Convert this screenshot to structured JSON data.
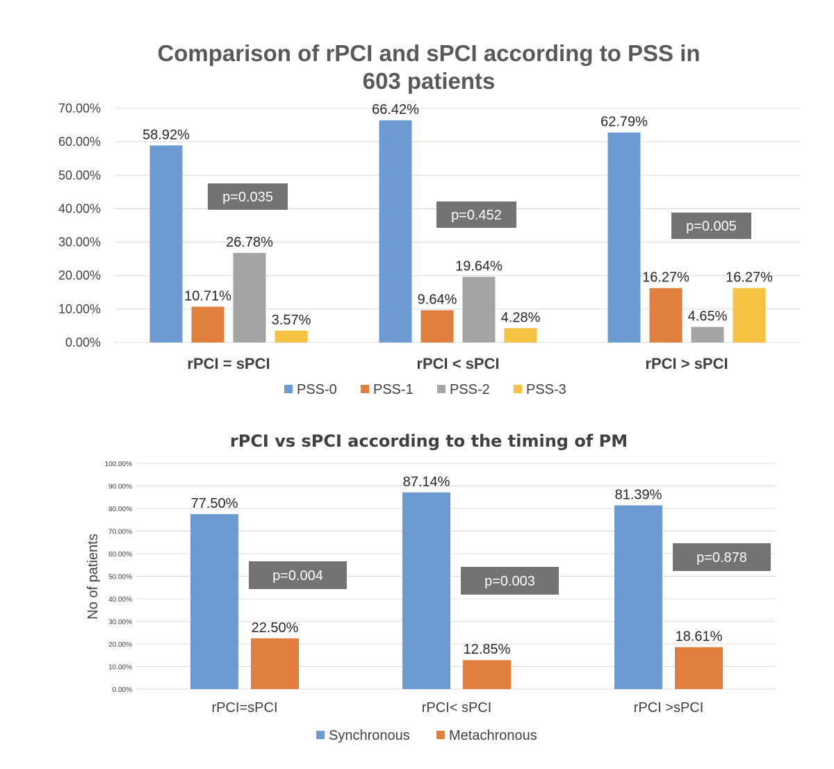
{
  "chart_data": [
    {
      "type": "bar",
      "title": [
        "Comparison of rPCI and sPCI according to PSS in",
        "603 patients"
      ],
      "categories": [
        "rPCI = sPCI",
        "rPCI < sPCI",
        "rPCI > sPCI"
      ],
      "ylim": [
        0,
        70
      ],
      "yticks": [
        0,
        10,
        20,
        30,
        40,
        50,
        60,
        70
      ],
      "ytick_labels": [
        "0.00%",
        "10.00%",
        "20.00%",
        "30.00%",
        "40.00%",
        "50.00%",
        "60.00%",
        "70.00%"
      ],
      "xlabel": "",
      "ylabel": "",
      "grid": true,
      "legend": "bottom",
      "series": [
        {
          "name": "PSS-0",
          "color": "#6B9BD1",
          "values": [
            58.92,
            66.42,
            62.79
          ],
          "labels": [
            "58.92%",
            "66.42%",
            "62.79%"
          ]
        },
        {
          "name": "PSS-1",
          "color": "#E07F3E",
          "values": [
            10.71,
            9.64,
            16.27
          ],
          "labels": [
            "10.71%",
            "9.64%",
            "16.27%"
          ]
        },
        {
          "name": "PSS-2",
          "color": "#A5A5A5",
          "values": [
            26.78,
            19.64,
            4.65
          ],
          "labels": [
            "26.78%",
            "19.64%",
            "4.65%"
          ]
        },
        {
          "name": "PSS-3",
          "color": "#F6C242",
          "values": [
            3.57,
            4.28,
            16.27
          ],
          "labels": [
            "3.57%",
            "4.28%",
            "16.27%"
          ]
        }
      ],
      "annotations": [
        "p=0.035",
        "p=0.452",
        "p=0.005"
      ]
    },
    {
      "type": "bar",
      "title": [
        "rPCI vs sPCI according to the timing of PM"
      ],
      "categories": [
        "rPCI=sPCI",
        "rPCI< sPCI",
        "rPCI >sPCI"
      ],
      "ylim": [
        0,
        100
      ],
      "yticks": [
        0,
        10,
        20,
        30,
        40,
        50,
        60,
        70,
        80,
        90,
        100
      ],
      "ytick_labels": [
        "0.00%",
        "10.00%",
        "20.00%",
        "30.00%",
        "40.00%",
        "50.00%",
        "60.00%",
        "70.00%",
        "80.00%",
        "90.00%",
        "100.00%"
      ],
      "xlabel": "",
      "ylabel": "No of patients",
      "grid": true,
      "legend": "bottom",
      "series": [
        {
          "name": "Synchronous",
          "color": "#6B9BD1",
          "values": [
            77.5,
            87.14,
            81.39
          ],
          "labels": [
            "77.50%",
            "87.14%",
            "81.39%"
          ]
        },
        {
          "name": "Metachronous",
          "color": "#E07F3E",
          "values": [
            22.5,
            12.85,
            18.61
          ],
          "labels": [
            "22.50%",
            "12.85%",
            "18.61%"
          ]
        }
      ],
      "annotations": [
        "p=0.004",
        "p=0.003",
        "p=0.878"
      ]
    }
  ]
}
